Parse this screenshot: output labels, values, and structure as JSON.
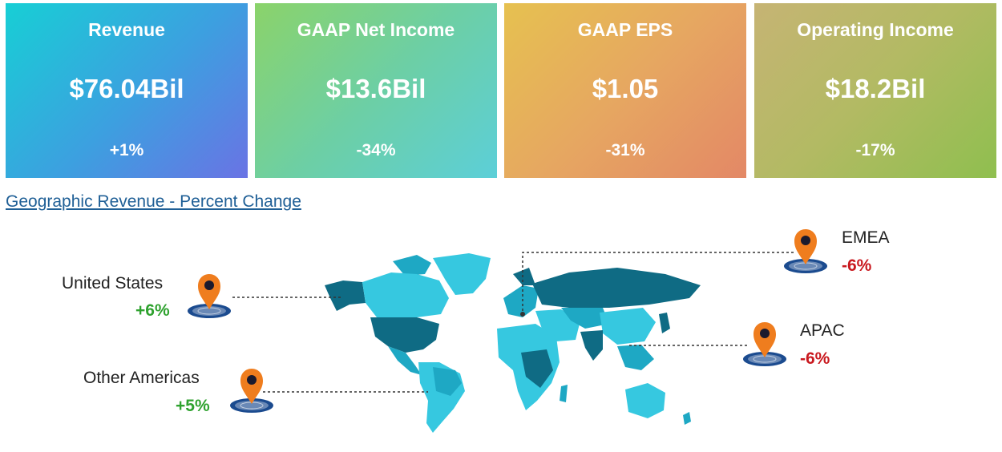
{
  "colors": {
    "positive": "#2fa22f",
    "negative": "#c9191f",
    "link": "#1f5f96",
    "pin": "#ef7d1e",
    "pin_base": "#1b4b8f",
    "map_dark": "#0f6b84",
    "map_mid": "#1ea8c4",
    "map_light": "#36c8e0"
  },
  "cards": [
    {
      "title": "Revenue",
      "value": "$76.04Bil",
      "change": "+1%"
    },
    {
      "title": "GAAP Net Income",
      "value": "$13.6Bil",
      "change": "-34%"
    },
    {
      "title": "GAAP EPS",
      "value": "$1.05",
      "change": "-31%"
    },
    {
      "title": "Operating Income",
      "value": "$18.2Bil",
      "change": "-17%"
    }
  ],
  "section": {
    "title": "Geographic Revenue - Percent Change"
  },
  "regions": [
    {
      "name": "United States",
      "change": "+6%",
      "trend": "positive",
      "icon": "location-pin-icon"
    },
    {
      "name": "Other Americas",
      "change": "+5%",
      "trend": "positive",
      "icon": "location-pin-icon"
    },
    {
      "name": "EMEA",
      "change": "-6%",
      "trend": "negative",
      "icon": "location-pin-icon"
    },
    {
      "name": "APAC",
      "change": "-6%",
      "trend": "negative",
      "icon": "location-pin-icon"
    }
  ]
}
